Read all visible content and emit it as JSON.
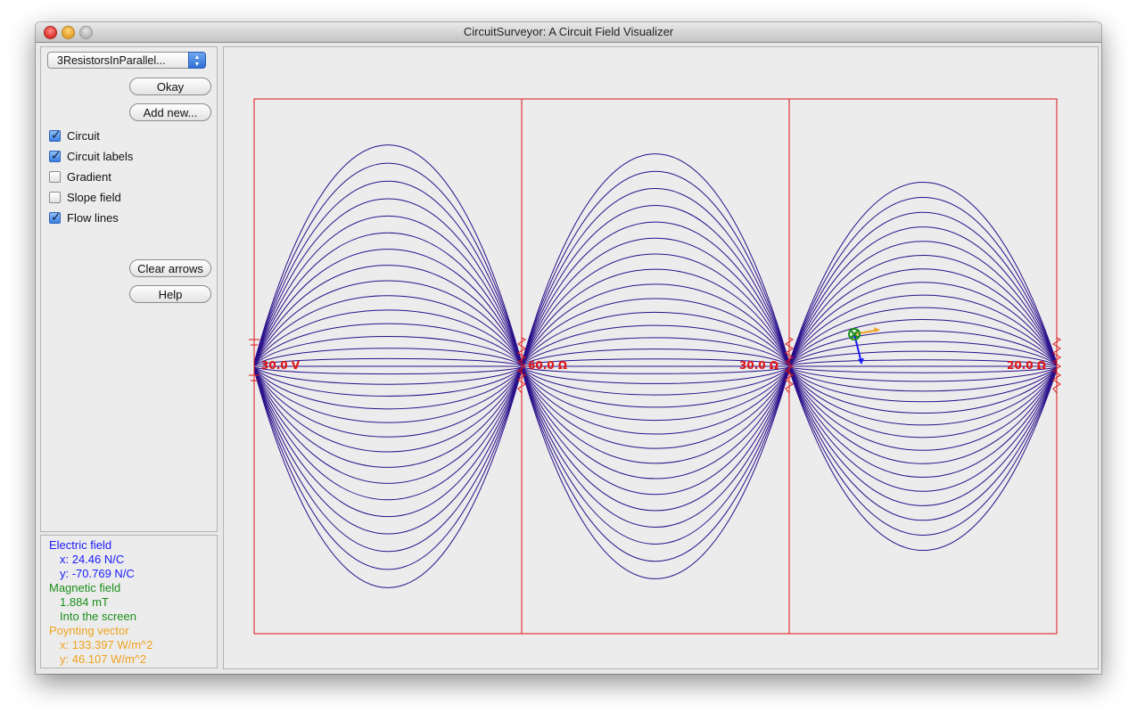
{
  "window": {
    "title": "CircuitSurveyor: A Circuit Field Visualizer"
  },
  "controls": {
    "circuit_select": {
      "value": "3ResistorsInParallel..."
    },
    "okay_label": "Okay",
    "add_new_label": "Add new...",
    "options": [
      {
        "label": "Circuit",
        "checked": true
      },
      {
        "label": "Circuit labels",
        "checked": true
      },
      {
        "label": "Gradient",
        "checked": false
      },
      {
        "label": "Slope field",
        "checked": false
      },
      {
        "label": "Flow lines",
        "checked": true
      }
    ],
    "clear_arrows_label": "Clear arrows",
    "help_label": "Help"
  },
  "readout": {
    "electric": {
      "heading": "Electric field",
      "x": "x: 24.46 N/C",
      "y": "y: -70.769 N/C",
      "color": "#1a1aff"
    },
    "magnetic": {
      "heading": "Magnetic field",
      "value": "1.884 mT",
      "direction": "Into the screen",
      "color": "#1b8f1b"
    },
    "poynting": {
      "heading": "Poynting vector",
      "x": "x: 133.397 W/m^2",
      "y": "y: 46.107 W/m^2",
      "color": "#f0a11e"
    }
  },
  "circuit": {
    "labels": {
      "source": "30.0 V",
      "r1": "60.0 Ω",
      "r2": "30.0 Ω",
      "r3": "20.0 Ω"
    },
    "wire_color": "#e01414",
    "flow_line_color": "#2a0f8a",
    "probe_icon": "into-screen-cross-icon"
  }
}
